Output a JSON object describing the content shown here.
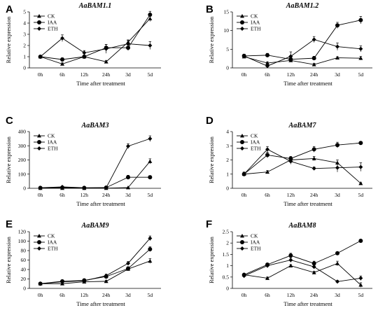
{
  "chart_data": [
    {
      "type": "line",
      "panel": "A",
      "title": "AaBAM1.1",
      "xlabel": "Time after treatment",
      "ylabel": "Relative expression",
      "categories": [
        "0h",
        "6h",
        "12h",
        "24h",
        "3d",
        "5d"
      ],
      "ylim": [
        0,
        5
      ],
      "yticks": [
        0,
        1,
        2,
        3,
        4,
        5
      ],
      "legend": "top-left",
      "series": [
        {
          "name": "CK",
          "marker": "triangle",
          "values": [
            1.0,
            0.35,
            1.0,
            0.55,
            2.3,
            4.4
          ],
          "errors": [
            0.1,
            0.1,
            0.1,
            0.1,
            0.2,
            0.25
          ]
        },
        {
          "name": "IAA",
          "marker": "circle",
          "values": [
            1.0,
            0.75,
            1.0,
            1.8,
            1.8,
            4.75
          ],
          "errors": [
            0.1,
            0.15,
            0.15,
            0.3,
            0.25,
            0.3
          ]
        },
        {
          "name": "ETH",
          "marker": "diamond",
          "values": [
            1.0,
            2.65,
            1.35,
            1.7,
            2.15,
            2.0
          ],
          "errors": [
            0.1,
            0.3,
            0.2,
            0.4,
            0.3,
            0.35
          ]
        }
      ]
    },
    {
      "type": "line",
      "panel": "B",
      "title": "AaBAM1.2",
      "xlabel": "Time after treatment",
      "ylabel": "Relative expression",
      "categories": [
        "0h",
        "6h",
        "12h",
        "24h",
        "3d",
        "5d"
      ],
      "ylim": [
        0,
        15
      ],
      "yticks": [
        0,
        5,
        10,
        15
      ],
      "legend": "top-left",
      "series": [
        {
          "name": "CK",
          "marker": "triangle",
          "values": [
            3.0,
            1.3,
            2.0,
            0.9,
            2.7,
            2.6
          ],
          "errors": [
            0.4,
            0.3,
            0.4,
            0.3,
            0.3,
            0.5
          ]
        },
        {
          "name": "IAA",
          "marker": "circle",
          "values": [
            3.2,
            3.4,
            2.3,
            2.6,
            11.4,
            12.8
          ],
          "errors": [
            0.5,
            0.5,
            0.5,
            0.5,
            0.8,
            1.0
          ]
        },
        {
          "name": "ETH",
          "marker": "diamond",
          "values": [
            3.2,
            0.5,
            3.1,
            7.6,
            5.7,
            5.1
          ],
          "errors": [
            0.4,
            0.3,
            1.2,
            0.8,
            1.0,
            0.8
          ]
        }
      ]
    },
    {
      "type": "line",
      "panel": "C",
      "title": "AaBAM3",
      "xlabel": "Time after treatment",
      "ylabel": "Relative expression",
      "categories": [
        "0h",
        "6h",
        "12h",
        "24h",
        "3d",
        "5d"
      ],
      "ylim": [
        0,
        400
      ],
      "yticks": [
        0,
        100,
        200,
        300,
        400
      ],
      "legend": "top-left",
      "series": [
        {
          "name": "CK",
          "marker": "triangle",
          "values": [
            1,
            1,
            1,
            1,
            5,
            190
          ],
          "errors": [
            1,
            1,
            1,
            1,
            2,
            18
          ]
        },
        {
          "name": "IAA",
          "marker": "circle",
          "values": [
            3,
            5,
            3,
            5,
            78,
            78
          ],
          "errors": [
            2,
            3,
            2,
            2,
            14,
            12
          ]
        },
        {
          "name": "ETH",
          "marker": "diamond",
          "values": [
            4,
            10,
            4,
            4,
            297,
            350
          ],
          "errors": [
            2,
            4,
            2,
            2,
            18,
            20
          ]
        }
      ]
    },
    {
      "type": "line",
      "panel": "D",
      "title": "AaBAM7",
      "xlabel": "Time after treatment",
      "ylabel": "Relative expression",
      "categories": [
        "0h",
        "6h",
        "12h",
        "24h",
        "3d",
        "5d"
      ],
      "ylim": [
        0,
        4
      ],
      "yticks": [
        0,
        1,
        2,
        3,
        4
      ],
      "legend": "top-left",
      "series": [
        {
          "name": "CK",
          "marker": "triangle",
          "values": [
            1.0,
            1.15,
            2.0,
            2.1,
            1.8,
            0.35
          ],
          "errors": [
            0.1,
            0.1,
            0.15,
            0.15,
            0.2,
            0.05
          ]
        },
        {
          "name": "IAA",
          "marker": "circle",
          "values": [
            1.0,
            2.35,
            2.1,
            2.75,
            3.05,
            3.2
          ],
          "errors": [
            0.1,
            0.2,
            0.15,
            0.2,
            0.2,
            0.1
          ]
        },
        {
          "name": "ETH",
          "marker": "diamond",
          "values": [
            1.0,
            2.75,
            1.9,
            1.4,
            1.45,
            1.5
          ],
          "errors": [
            0.15,
            0.2,
            0.2,
            0.1,
            0.3,
            0.3
          ]
        }
      ]
    },
    {
      "type": "line",
      "panel": "E",
      "title": "AaBAM9",
      "xlabel": "Time after treatment",
      "ylabel": "Relative  expression",
      "categories": [
        "0h",
        "6h",
        "12h",
        "24h",
        "3d",
        "5d"
      ],
      "ylim": [
        0,
        120
      ],
      "yticks": [
        0,
        20,
        40,
        60,
        80,
        100,
        120
      ],
      "legend": "top-left",
      "series": [
        {
          "name": "CK",
          "marker": "triangle",
          "values": [
            10,
            10,
            14,
            15,
            41,
            58
          ],
          "errors": [
            2,
            2,
            2,
            2,
            4,
            5
          ]
        },
        {
          "name": "IAA",
          "marker": "circle",
          "values": [
            10,
            15,
            17,
            25,
            42,
            83
          ],
          "errors": [
            2,
            2,
            2,
            3,
            4,
            5
          ]
        },
        {
          "name": "ETH",
          "marker": "diamond",
          "values": [
            10,
            14,
            16,
            27,
            53,
            106
          ],
          "errors": [
            2,
            2,
            2,
            3,
            4,
            5
          ]
        }
      ]
    },
    {
      "type": "line",
      "panel": "F",
      "title": "AaBAM8",
      "xlabel": "Time after treatment",
      "ylabel": "Relative  expression",
      "categories": [
        "0h",
        "6h",
        "12h",
        "24h",
        "3d",
        "5d"
      ],
      "ylim": [
        0,
        2.5
      ],
      "yticks": [
        0,
        0.5,
        1,
        1.5,
        2,
        2.5
      ],
      "legend": "top-left",
      "series": [
        {
          "name": "CK",
          "marker": "triangle",
          "values": [
            0.6,
            0.45,
            1.0,
            0.7,
            1.1,
            0.15
          ],
          "errors": [
            0.05,
            0.05,
            0.05,
            0.05,
            0.1,
            0.1
          ]
        },
        {
          "name": "IAA",
          "marker": "circle",
          "values": [
            0.6,
            1.05,
            1.45,
            1.1,
            1.55,
            2.1
          ],
          "errors": [
            0.05,
            0.05,
            0.1,
            0.1,
            0.05,
            0.05
          ]
        },
        {
          "name": "ETH",
          "marker": "diamond",
          "values": [
            0.55,
            1.0,
            1.25,
            0.95,
            0.3,
            0.45
          ],
          "errors": [
            0.05,
            0.05,
            0.1,
            0.05,
            0.05,
            0.1
          ]
        }
      ]
    }
  ]
}
